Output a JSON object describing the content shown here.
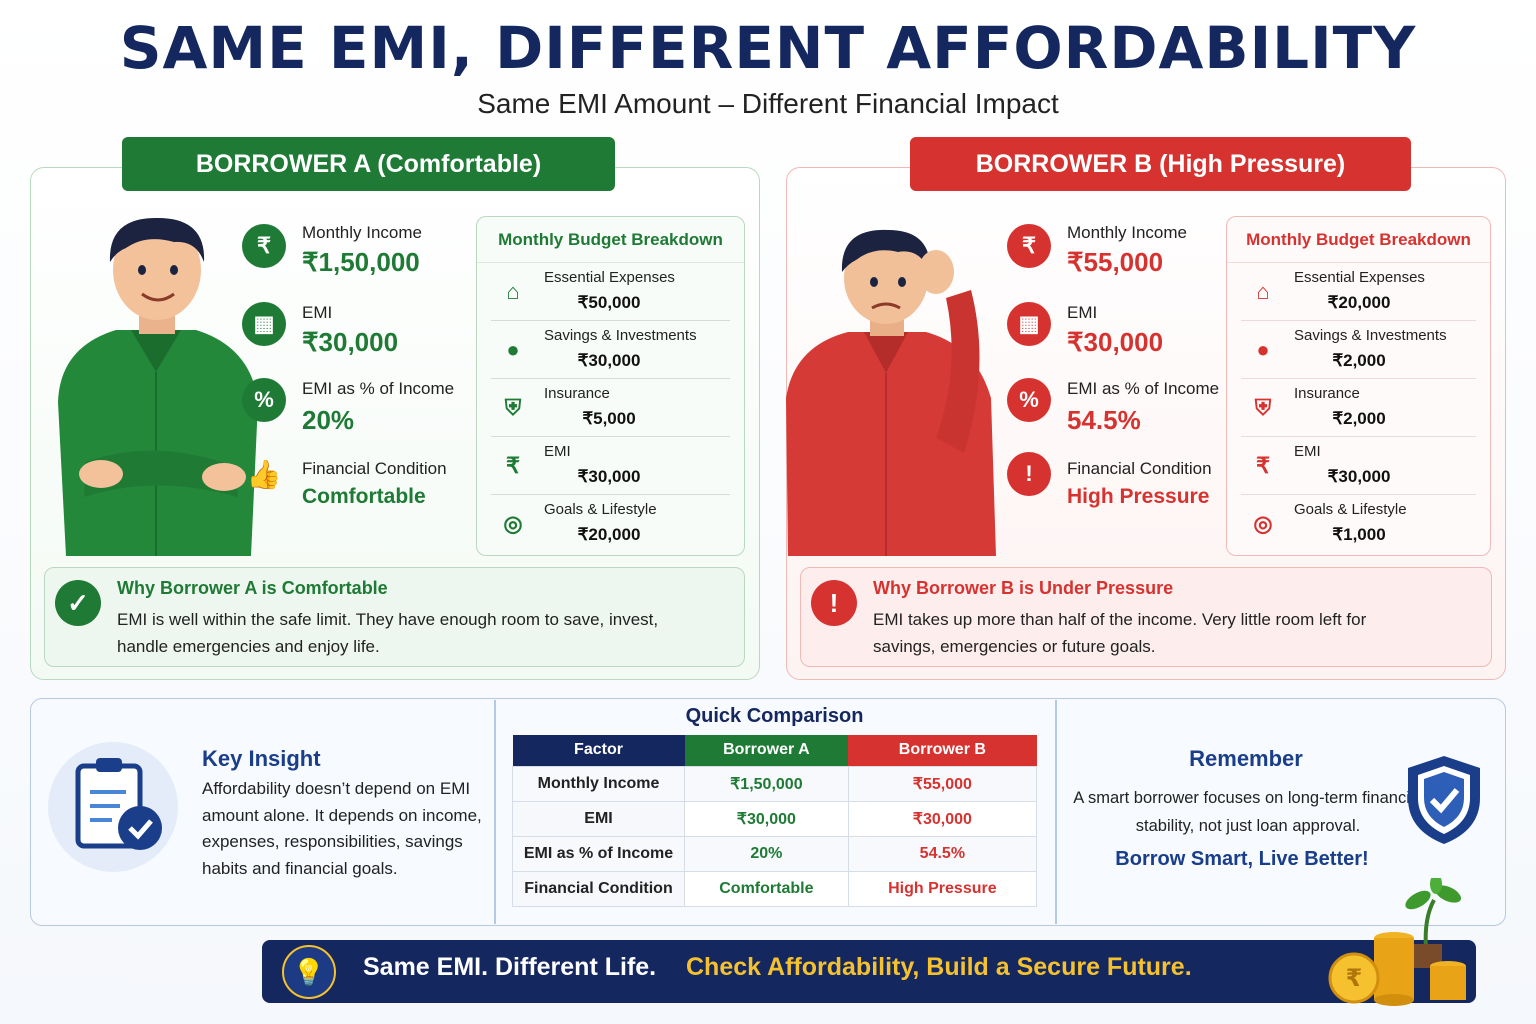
{
  "header": {
    "title": "SAME EMI, DIFFERENT AFFORDABILITY",
    "subtitle": "Same EMI Amount – Different Financial Impact"
  },
  "colors": {
    "green": "#1e7a34",
    "red": "#d63330",
    "navy": "#14275e",
    "gold": "#f5c12e"
  },
  "borrower_a": {
    "title": "BORROWER A (Comfortable)",
    "stats": [
      {
        "icon": "rupee-icon",
        "label": "Monthly Income",
        "value": "₹1,50,000"
      },
      {
        "icon": "calculator-icon",
        "label": "EMI",
        "value": "₹30,000"
      },
      {
        "icon": "pie-percent-icon",
        "label": "EMI as % of Income",
        "value": "20%"
      },
      {
        "icon": "thumbs-up-icon",
        "label": "Financial Condition",
        "value": "Comfortable"
      }
    ],
    "budget": {
      "title": "Monthly Budget Breakdown",
      "rows": [
        {
          "icon": "house-icon",
          "label": "Essential Expenses",
          "value": "₹50,000"
        },
        {
          "icon": "piggy-bank-icon",
          "label": "Savings & Investments",
          "value": "₹30,000"
        },
        {
          "icon": "shield-plus-icon",
          "label": "Insurance",
          "value": "₹5,000"
        },
        {
          "icon": "rupee-icon",
          "label": "EMI",
          "value": "₹30,000"
        },
        {
          "icon": "target-icon",
          "label": "Goals & Lifestyle",
          "value": "₹20,000"
        }
      ]
    },
    "why": {
      "title": "Why Borrower A is Comfortable",
      "text": "EMI is well within the safe limit. They have enough room to save, invest, handle emergencies and enjoy life."
    }
  },
  "borrower_b": {
    "title": "BORROWER B (High Pressure)",
    "stats": [
      {
        "icon": "rupee-icon",
        "label": "Monthly Income",
        "value": "₹55,000"
      },
      {
        "icon": "calculator-icon",
        "label": "EMI",
        "value": "₹30,000"
      },
      {
        "icon": "pie-percent-icon",
        "label": "EMI as % of Income",
        "value": "54.5%"
      },
      {
        "icon": "warning-icon",
        "label": "Financial Condition",
        "value": "High Pressure"
      }
    ],
    "budget": {
      "title": "Monthly Budget Breakdown",
      "rows": [
        {
          "icon": "house-icon",
          "label": "Essential Expenses",
          "value": "₹20,000"
        },
        {
          "icon": "piggy-bank-icon",
          "label": "Savings & Investments",
          "value": "₹2,000"
        },
        {
          "icon": "shield-plus-icon",
          "label": "Insurance",
          "value": "₹2,000"
        },
        {
          "icon": "rupee-icon",
          "label": "EMI",
          "value": "₹30,000"
        },
        {
          "icon": "target-icon",
          "label": "Goals & Lifestyle",
          "value": "₹1,000"
        }
      ]
    },
    "why": {
      "title": "Why Borrower B is Under Pressure",
      "text": "EMI takes up more than half of the income. Very little room left for savings, emergencies or future goals."
    }
  },
  "insight": {
    "title": "Key Insight",
    "text": "Affordability doesn’t depend on EMI amount alone. It depends on income, expenses, responsibilities, savings habits and financial goals."
  },
  "comparison": {
    "title": "Quick Comparison",
    "headers": [
      "Factor",
      "Borrower A",
      "Borrower B"
    ],
    "rows": [
      [
        "Monthly Income",
        "₹1,50,000",
        "₹55,000"
      ],
      [
        "EMI",
        "₹30,000",
        "₹30,000"
      ],
      [
        "EMI as % of Income",
        "20%",
        "54.5%"
      ],
      [
        "Financial Condition",
        "Comfortable",
        "High Pressure"
      ]
    ]
  },
  "remember": {
    "title": "Remember",
    "text": "A smart borrower focuses on long-term financial stability, not just loan approval.",
    "slogan": "Borrow Smart, Live Better!"
  },
  "banner": {
    "left": "Same EMI. Different Life.",
    "right": "Check Affordability, Build a Secure Future."
  }
}
